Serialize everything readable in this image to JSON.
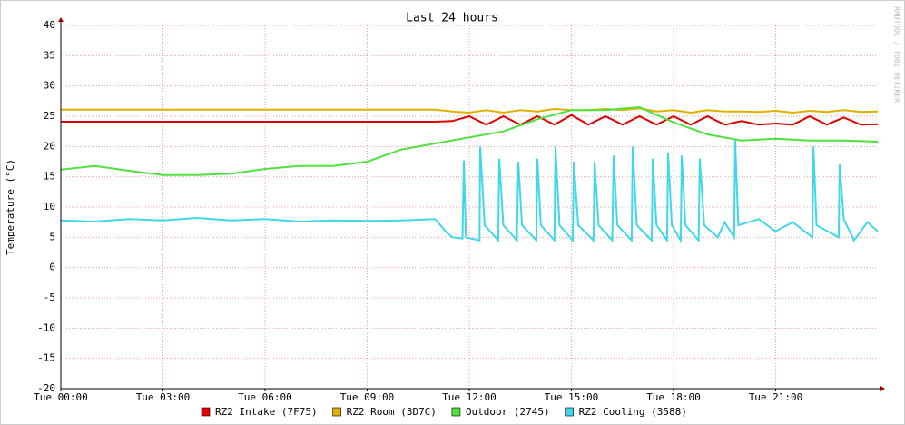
{
  "chart_data": {
    "type": "line",
    "title": "Last 24 hours",
    "y_label": "Temperature (°C)",
    "watermark": "RRDTOOL / TOBI OETIKER",
    "xlim": [
      0,
      24
    ],
    "ylim": [
      -20,
      40
    ],
    "xticks": [
      {
        "value": 0,
        "label": "Tue 00:00"
      },
      {
        "value": 3,
        "label": "Tue 03:00"
      },
      {
        "value": 6,
        "label": "Tue 06:00"
      },
      {
        "value": 9,
        "label": "Tue 09:00"
      },
      {
        "value": 12,
        "label": "Tue 12:00"
      },
      {
        "value": 15,
        "label": "Tue 15:00"
      },
      {
        "value": 18,
        "label": "Tue 18:00"
      },
      {
        "value": 21,
        "label": "Tue 21:00"
      }
    ],
    "yticks": [
      -20,
      -15,
      -10,
      -5,
      0,
      5,
      10,
      15,
      20,
      25,
      30,
      35,
      40
    ],
    "grid": true,
    "series": [
      {
        "name": "RZ2 Intake (7F75)",
        "color": "#e00000",
        "x": [
          0,
          0.5,
          1,
          1.5,
          2,
          2.5,
          3,
          3.5,
          4,
          4.5,
          5,
          5.5,
          6,
          6.5,
          7,
          7.5,
          8,
          8.5,
          9,
          9.5,
          10,
          10.5,
          11,
          11.5,
          12,
          12.5,
          13,
          13.5,
          14,
          14.5,
          15,
          15.5,
          16,
          16.5,
          17,
          17.5,
          18,
          18.5,
          19,
          19.5,
          20,
          20.5,
          21,
          21.5,
          22,
          22.5,
          23,
          23.5,
          24
        ],
        "values": [
          24.1,
          24.1,
          24.1,
          24.1,
          24.1,
          24.1,
          24.1,
          24.1,
          24.1,
          24.1,
          24.1,
          24.1,
          24.1,
          24.1,
          24.1,
          24.1,
          24.1,
          24.1,
          24.1,
          24.1,
          24.1,
          24.1,
          24.1,
          24.2,
          25,
          23.6,
          25,
          23.6,
          25,
          23.6,
          25.2,
          23.6,
          25,
          23.6,
          25,
          23.6,
          25,
          23.6,
          25,
          23.6,
          24.2,
          23.6,
          23.8,
          23.6,
          25,
          23.6,
          24.8,
          23.6,
          23.7
        ]
      },
      {
        "name": "RZ2 Room (3D7C)",
        "color": "#e0b000",
        "x": [
          0,
          0.5,
          1,
          1.5,
          2,
          2.5,
          3,
          3.5,
          4,
          4.5,
          5,
          5.5,
          6,
          6.5,
          7,
          7.5,
          8,
          8.5,
          9,
          9.5,
          10,
          10.5,
          11,
          11.5,
          12,
          12.5,
          13,
          13.5,
          14,
          14.5,
          15,
          15.5,
          16,
          16.5,
          17,
          17.5,
          18,
          18.5,
          19,
          19.5,
          20,
          20.5,
          21,
          21.5,
          22,
          22.5,
          23,
          23.5,
          24
        ],
        "values": [
          26.1,
          26.1,
          26.1,
          26.1,
          26.1,
          26.1,
          26.1,
          26.1,
          26.1,
          26.1,
          26.1,
          26.1,
          26.1,
          26.1,
          26.1,
          26.1,
          26.1,
          26.1,
          26.1,
          26.1,
          26.1,
          26.1,
          26.1,
          25.8,
          25.6,
          26,
          25.6,
          26,
          25.8,
          26.2,
          26,
          26,
          26.2,
          26,
          26.3,
          25.8,
          26,
          25.6,
          26,
          25.8,
          25.8,
          25.7,
          25.9,
          25.6,
          25.9,
          25.7,
          26,
          25.7,
          25.8
        ]
      },
      {
        "name": "Outdoor (2745)",
        "color": "#50e040",
        "x": [
          0,
          1,
          2,
          3,
          4,
          5,
          6,
          7,
          8,
          9,
          10,
          11,
          12,
          13,
          14,
          15,
          16,
          17,
          18,
          19,
          20,
          21,
          22,
          23,
          24
        ],
        "values": [
          16.2,
          16.8,
          16,
          15.3,
          15.3,
          15.5,
          16.3,
          16.8,
          16.8,
          17.5,
          19.5,
          20.5,
          21.5,
          22.5,
          24.5,
          26,
          26,
          26.5,
          24,
          22,
          21,
          21.3,
          21,
          21,
          20.8
        ]
      },
      {
        "name": "RZ2 Cooling (3588)",
        "color": "#40d8e8",
        "x": [
          0,
          1,
          2,
          3,
          4,
          5,
          6,
          7,
          8,
          9,
          10,
          11,
          11.3,
          11.5,
          11.8,
          11.84,
          11.9,
          12.3,
          12.32,
          12.45,
          12.85,
          12.88,
          13,
          13.4,
          13.44,
          13.55,
          13.97,
          14,
          14.1,
          14.5,
          14.53,
          14.65,
          15.04,
          15.07,
          15.2,
          15.65,
          15.68,
          15.8,
          16.2,
          16.24,
          16.35,
          16.77,
          16.8,
          16.92,
          17.36,
          17.39,
          17.5,
          17.81,
          17.84,
          17.95,
          18.21,
          18.24,
          18.35,
          18.74,
          18.77,
          18.9,
          19.3,
          19.5,
          19.78,
          19.81,
          19.9,
          20.5,
          21,
          21.5,
          22.08,
          22.11,
          22.2,
          22.85,
          22.88,
          23,
          23.3,
          23.7,
          24
        ],
        "values": [
          7.8,
          7.6,
          8,
          7.8,
          8.2,
          7.8,
          8,
          7.6,
          7.8,
          7.7,
          7.8,
          8,
          6,
          5,
          4.8,
          17.7,
          5,
          4.5,
          20,
          7,
          4.5,
          18,
          7,
          4.5,
          17.5,
          7,
          4.5,
          18,
          7,
          4.5,
          20,
          7,
          4.5,
          17.5,
          7,
          4.5,
          17.5,
          7,
          4.5,
          18.5,
          7,
          4.5,
          20,
          7,
          4.5,
          18,
          7,
          4.5,
          19,
          7,
          4.5,
          18.5,
          7,
          4.5,
          18,
          7,
          5,
          7.5,
          5,
          21,
          7,
          8,
          6,
          7.5,
          5,
          20,
          7,
          5,
          17,
          8,
          4.5,
          7.5,
          6
        ]
      }
    ]
  }
}
